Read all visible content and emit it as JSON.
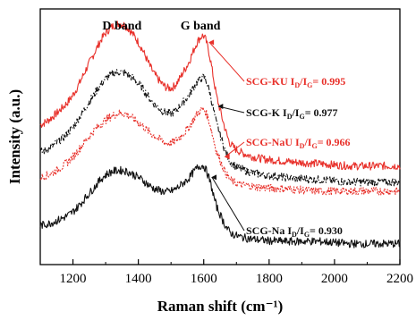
{
  "chart_data": {
    "type": "line",
    "xlabel": "Raman shift (cm⁻¹)",
    "ylabel": "Intensity (a.u.)",
    "xlim": [
      1100,
      2200
    ],
    "xticks": [
      1200,
      1400,
      1600,
      1800,
      2000,
      2200
    ],
    "yticks_shown": false,
    "grid": false,
    "band_labels": [
      {
        "text": "D band",
        "x": 1350
      },
      {
        "text": "G band",
        "x": 1590
      }
    ],
    "x": [
      1100,
      1150,
      1200,
      1250,
      1300,
      1350,
      1400,
      1450,
      1500,
      1550,
      1590,
      1610,
      1640,
      1680,
      1750,
      1850,
      1950,
      2050,
      2150,
      2200
    ],
    "series": [
      {
        "name": "SCG-KU",
        "ratio_label": "I",
        "ratio_sub_d": "D",
        "ratio_sub_g": "G",
        "ratio_value": "= 0.995",
        "color": "#e8302a",
        "style": "solid",
        "values": [
          0.58,
          0.63,
          0.71,
          0.85,
          0.98,
          1.02,
          0.94,
          0.8,
          0.74,
          0.84,
          0.96,
          0.93,
          0.7,
          0.5,
          0.44,
          0.42,
          0.41,
          0.4,
          0.4,
          0.4
        ]
      },
      {
        "name": "SCG-K",
        "ratio_label": "I",
        "ratio_sub_d": "D",
        "ratio_sub_g": "G",
        "ratio_value": "= 0.977",
        "color": "#111111",
        "style": "dashdot",
        "values": [
          0.46,
          0.5,
          0.57,
          0.68,
          0.78,
          0.81,
          0.76,
          0.67,
          0.63,
          0.7,
          0.78,
          0.76,
          0.58,
          0.42,
          0.37,
          0.35,
          0.34,
          0.33,
          0.33,
          0.33
        ]
      },
      {
        "name": "SCG-NaU",
        "ratio_label": "I",
        "ratio_sub_d": "D",
        "ratio_sub_g": "G",
        "ratio_value": "= 0.966",
        "color": "#e8302a",
        "style": "dotted",
        "values": [
          0.35,
          0.38,
          0.44,
          0.53,
          0.6,
          0.63,
          0.59,
          0.53,
          0.5,
          0.56,
          0.64,
          0.62,
          0.46,
          0.34,
          0.31,
          0.3,
          0.29,
          0.29,
          0.29,
          0.29
        ]
      },
      {
        "name": "SCG-Na",
        "ratio_label": "I",
        "ratio_sub_d": "D",
        "ratio_sub_g": "G",
        "ratio_value": "= 0.930",
        "color": "#111111",
        "style": "solid",
        "values": [
          0.14,
          0.16,
          0.2,
          0.28,
          0.36,
          0.38,
          0.35,
          0.3,
          0.29,
          0.34,
          0.4,
          0.37,
          0.22,
          0.11,
          0.08,
          0.07,
          0.07,
          0.06,
          0.06,
          0.06
        ]
      }
    ]
  }
}
